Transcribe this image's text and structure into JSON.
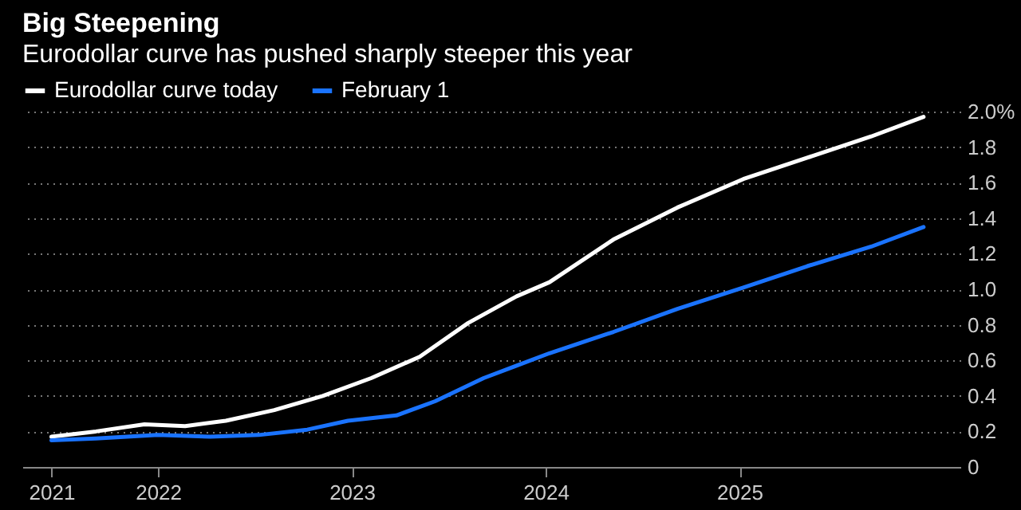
{
  "chart_data": {
    "type": "line",
    "title": "Big Steepening",
    "subtitle": "Eurodollar curve has pushed sharply steeper this year",
    "xlim": [
      2021.3,
      2026.14
    ],
    "xticks": [
      {
        "value": 2021.45,
        "label": "2021"
      },
      2022,
      2023,
      2024,
      2025
    ],
    "ylim": [
      0,
      2.0
    ],
    "yticks": [
      {
        "value": 0,
        "label": "0"
      },
      0.2,
      0.4,
      0.6,
      0.8,
      {
        "value": 1.0,
        "label": "1.0"
      },
      1.2,
      1.4,
      1.6,
      1.8,
      {
        "value": 2.0,
        "label": "2.0%"
      }
    ],
    "grid": "y",
    "legend": "top left",
    "line_style": "solid",
    "series": [
      {
        "name": "Eurodollar curve today",
        "color": "#ffffff",
        "x": [
          2021.45,
          2021.68,
          2021.93,
          2022.14,
          2022.35,
          2022.6,
          2022.85,
          2023.1,
          2023.35,
          2023.6,
          2023.85,
          2024.02,
          2024.35,
          2024.68,
          2025.02,
          2025.35,
          2025.68,
          2025.95
        ],
        "values": [
          0.17,
          0.2,
          0.24,
          0.23,
          0.26,
          0.32,
          0.4,
          0.5,
          0.62,
          0.81,
          0.96,
          1.04,
          1.28,
          1.46,
          1.62,
          1.74,
          1.86,
          1.97
        ]
      },
      {
        "name": "February 1",
        "color": "#1a73ff",
        "x": [
          2021.45,
          2021.68,
          2022.0,
          2022.27,
          2022.52,
          2022.77,
          2022.98,
          2023.23,
          2023.43,
          2023.68,
          2023.85,
          2024.02,
          2024.35,
          2024.68,
          2025.02,
          2025.35,
          2025.68,
          2025.95
        ],
        "values": [
          0.15,
          0.16,
          0.18,
          0.17,
          0.18,
          0.21,
          0.26,
          0.29,
          0.37,
          0.5,
          0.57,
          0.64,
          0.76,
          0.89,
          1.01,
          1.13,
          1.24,
          1.35
        ]
      }
    ]
  }
}
